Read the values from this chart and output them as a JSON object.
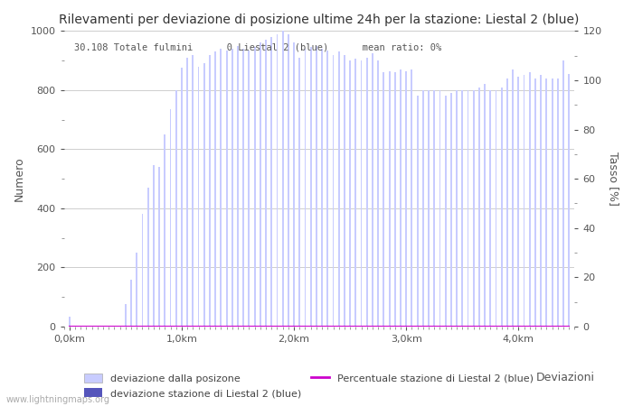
{
  "title": "Rilevamenti per deviazione di posizione ultime 24h per la stazione: Liestal 2 (blue)",
  "info_text": "30.108 Totale fulmini      0 Liestal 2 (blue)      mean ratio: 0%",
  "xlabel": "Deviazioni",
  "ylabel_left": "Numero",
  "ylabel_right": "Tasso [%]",
  "watermark": "www.lightningmaps.org",
  "bar_color_light": "#c8ccff",
  "bar_color_dark": "#5555bb",
  "line_color": "#cc00cc",
  "background_color": "#ffffff",
  "grid_color": "#bbbbbb",
  "ylim_left": [
    0,
    1000
  ],
  "ylim_right": [
    0,
    120
  ],
  "xtick_labels": [
    "0,0km",
    "1,0km",
    "2,0km",
    "3,0km",
    "4,0km"
  ],
  "xtick_positions": [
    0,
    20,
    40,
    60,
    80
  ],
  "total_bars": 90,
  "bar_values": [
    35,
    3,
    3,
    3,
    3,
    3,
    3,
    3,
    3,
    3,
    75,
    160,
    250,
    380,
    470,
    545,
    540,
    650,
    735,
    800,
    875,
    910,
    920,
    880,
    890,
    920,
    930,
    940,
    935,
    940,
    950,
    940,
    935,
    945,
    960,
    970,
    980,
    990,
    1000,
    990,
    960,
    910,
    940,
    945,
    950,
    940,
    935,
    920,
    930,
    920,
    900,
    905,
    900,
    910,
    925,
    900,
    860,
    865,
    860,
    870,
    865,
    870,
    780,
    800,
    800,
    800,
    800,
    780,
    790,
    800,
    800,
    800,
    800,
    810,
    820,
    800,
    800,
    810,
    840,
    870,
    845,
    850,
    860,
    840,
    850,
    840,
    840,
    840,
    900,
    855
  ],
  "station_bar_values": [
    0,
    0,
    0,
    0,
    0,
    0,
    0,
    0,
    0,
    0,
    0,
    0,
    0,
    0,
    0,
    0,
    0,
    0,
    0,
    0,
    0,
    0,
    0,
    0,
    0,
    0,
    0,
    0,
    0,
    0,
    0,
    0,
    0,
    0,
    0,
    0,
    0,
    0,
    0,
    0,
    0,
    0,
    0,
    0,
    0,
    0,
    0,
    0,
    0,
    0,
    0,
    0,
    0,
    0,
    0,
    0,
    0,
    0,
    0,
    0,
    0,
    0,
    0,
    0,
    0,
    0,
    0,
    0,
    0,
    0,
    0,
    0,
    0,
    0,
    0,
    0,
    0,
    0,
    0,
    0,
    0,
    0,
    0,
    0,
    0,
    0,
    0,
    0,
    0,
    0
  ],
  "legend_items": [
    {
      "label": "deviazione dalla posizone",
      "color": "#c8ccff",
      "type": "bar"
    },
    {
      "label": "deviazione stazione di Liestal 2 (blue)",
      "color": "#5555bb",
      "type": "bar"
    },
    {
      "label": "Percentuale stazione di Liestal 2 (blue)",
      "color": "#cc00cc",
      "type": "line"
    }
  ]
}
